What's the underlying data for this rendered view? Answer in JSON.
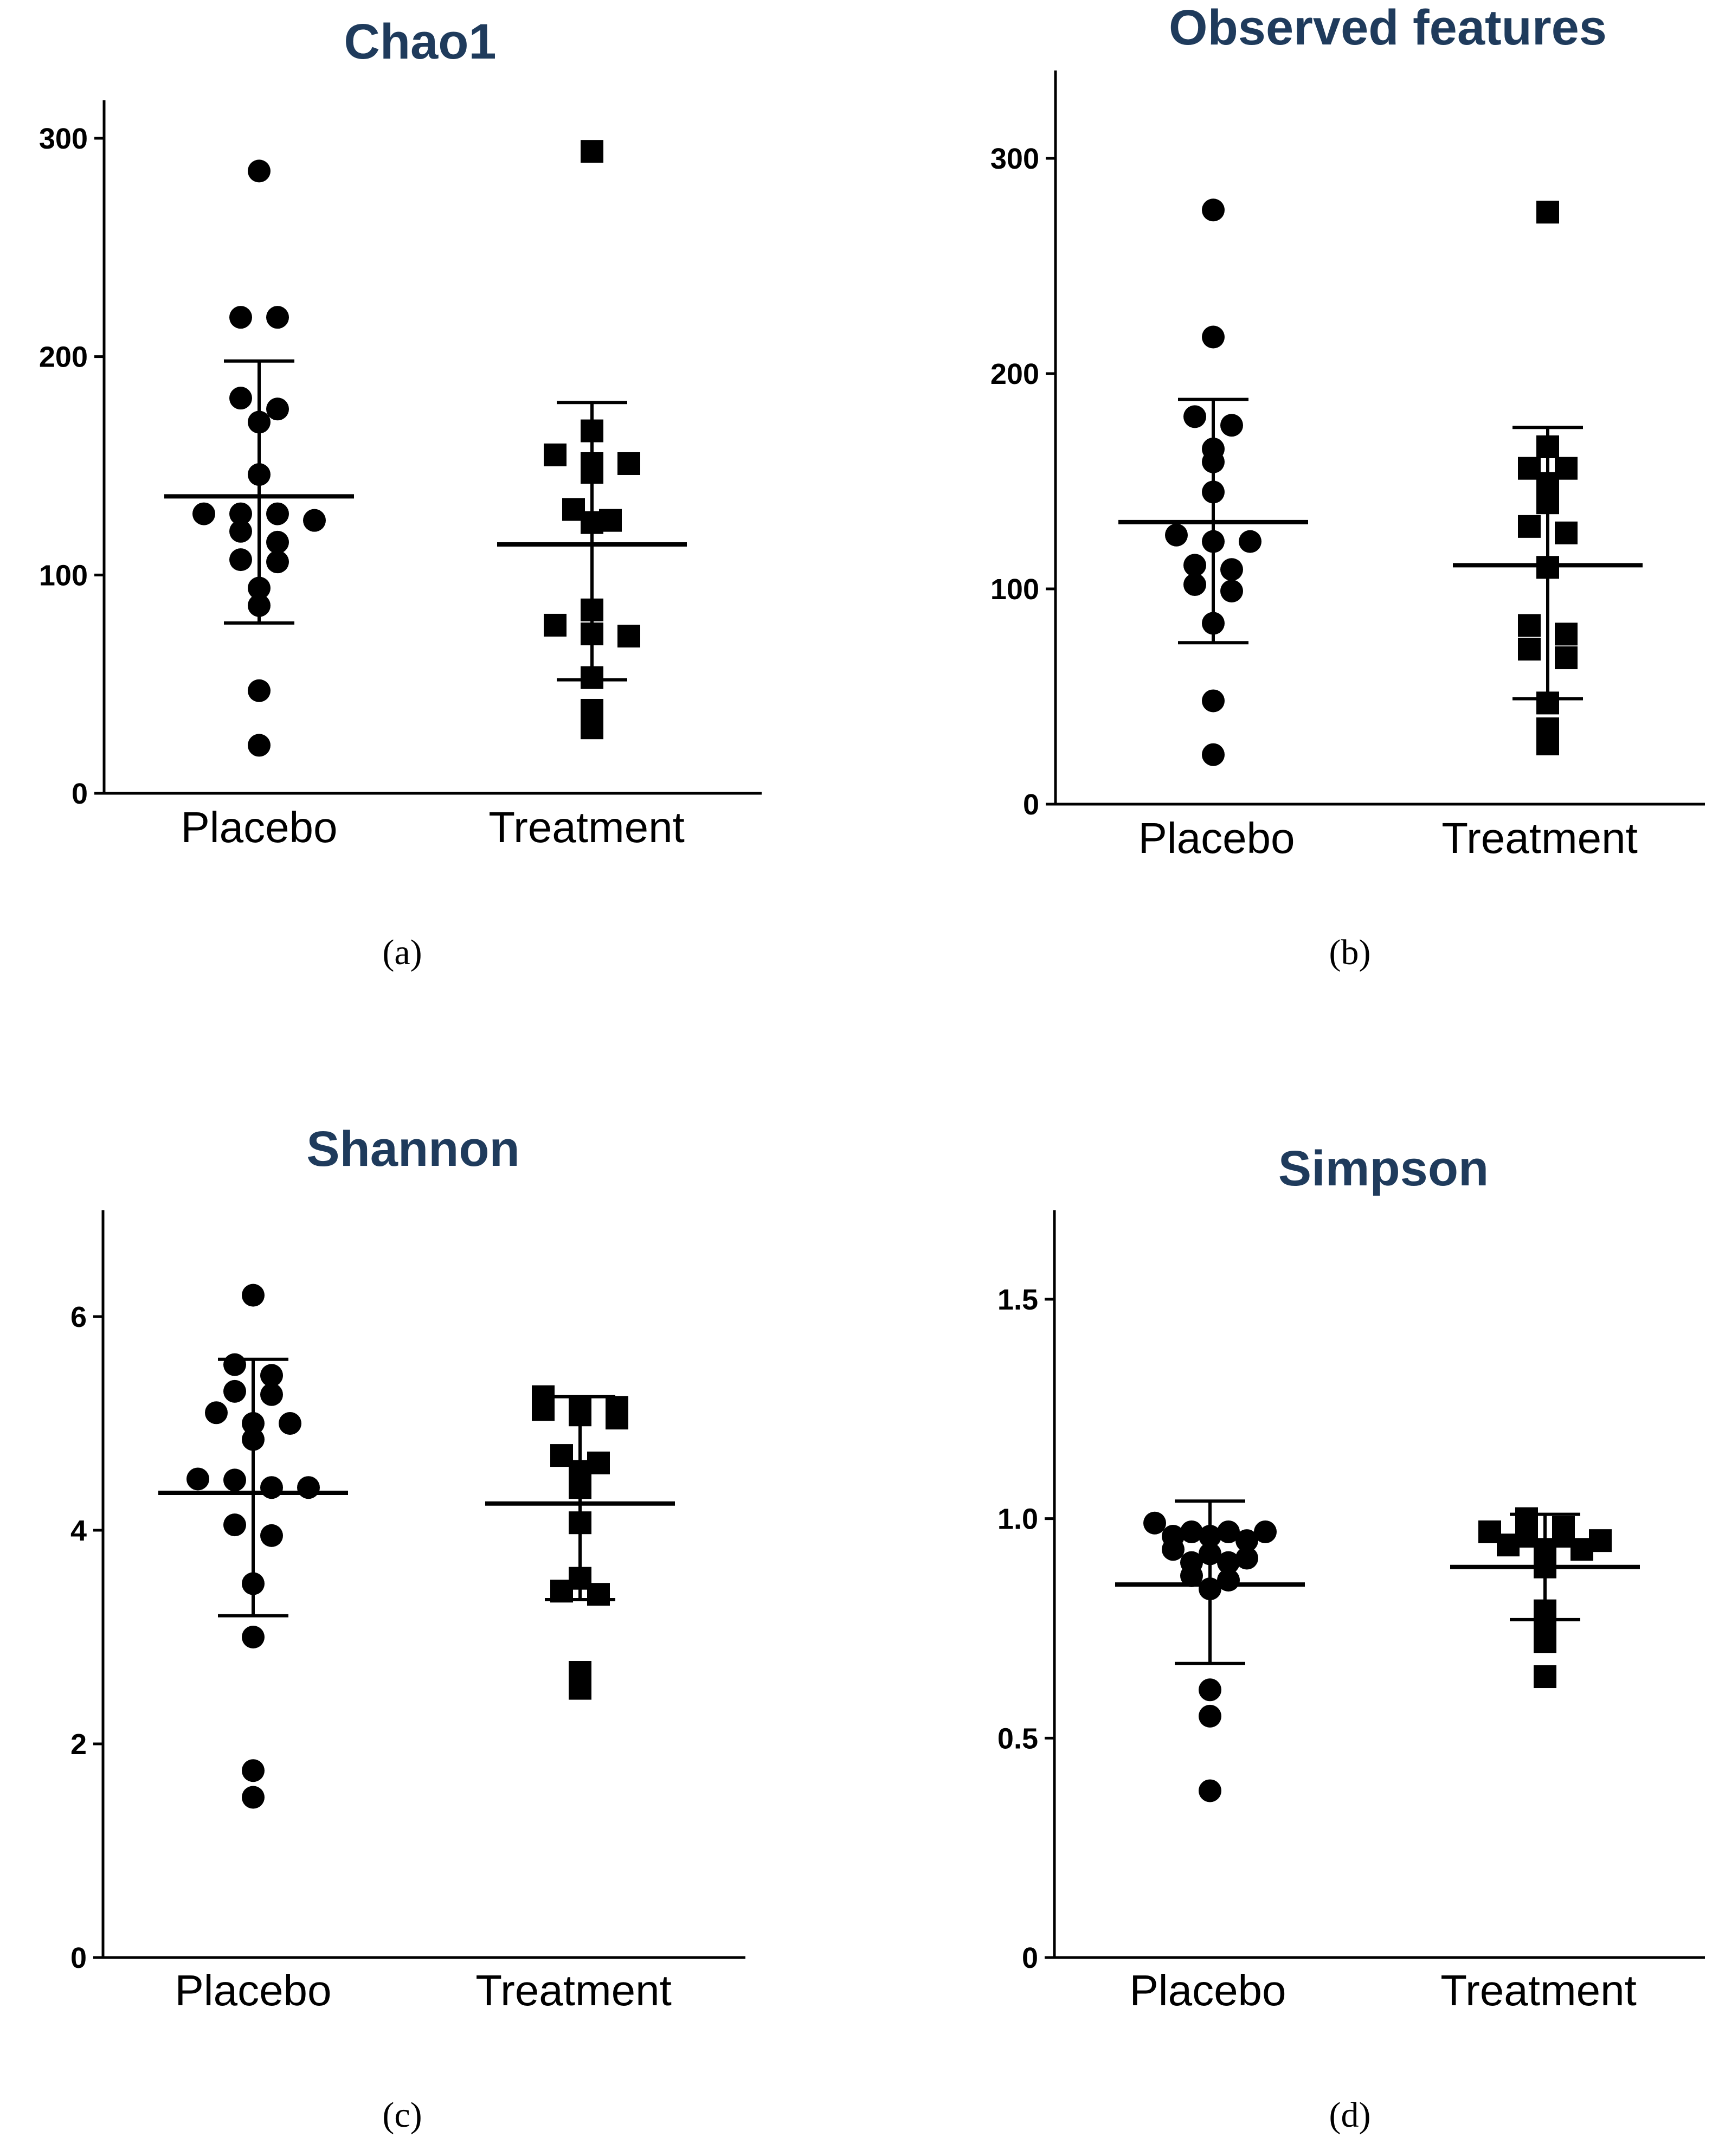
{
  "chart_data": [
    {
      "type": "scatter",
      "title": "Chao1",
      "panel_label": "(a)",
      "categories": [
        "Placebo",
        "Treatment"
      ],
      "ylim": [
        0,
        300
      ],
      "yticks": [
        0,
        100,
        200,
        300
      ],
      "grid": false,
      "series": [
        {
          "marker": "circle",
          "mean": 136,
          "error": [
            78,
            198
          ],
          "values": [
            285,
            218,
            218,
            181,
            176,
            170,
            146,
            128,
            128,
            128,
            125,
            120,
            115,
            107,
            106,
            94,
            86,
            47,
            22
          ]
        },
        {
          "marker": "square",
          "mean": 114,
          "error": [
            52,
            179
          ],
          "values": [
            294,
            166,
            155,
            151,
            151,
            147,
            130,
            125,
            124,
            84,
            77,
            73,
            72,
            53,
            38,
            30
          ]
        }
      ]
    },
    {
      "type": "scatter",
      "title": "Observed features",
      "panel_label": "(b)",
      "categories": [
        "Placebo",
        "Treatment"
      ],
      "ylim": [
        0,
        300
      ],
      "yticks": [
        0,
        100,
        200,
        300
      ],
      "grid": false,
      "series": [
        {
          "marker": "circle",
          "mean": 131,
          "error": [
            75,
            188
          ],
          "values": [
            276,
            217,
            180,
            176,
            165,
            159,
            145,
            125,
            122,
            122,
            111,
            109,
            102,
            99,
            84,
            48,
            23
          ]
        },
        {
          "marker": "square",
          "mean": 111,
          "error": [
            49,
            175
          ],
          "values": [
            275,
            166,
            156,
            156,
            149,
            140,
            129,
            126,
            110,
            83,
            79,
            72,
            68,
            47,
            35,
            28
          ]
        }
      ]
    },
    {
      "type": "scatter",
      "title": "Shannon",
      "panel_label": "(c)",
      "categories": [
        "Placebo",
        "Treatment"
      ],
      "ylim": [
        0,
        6
      ],
      "yticks": [
        0,
        2,
        4,
        6
      ],
      "grid": false,
      "series": [
        {
          "marker": "circle",
          "mean": 4.35,
          "error": [
            3.2,
            5.6
          ],
          "values": [
            6.2,
            5.55,
            5.45,
            5.3,
            5.27,
            5.1,
            5.0,
            5.0,
            4.85,
            4.48,
            4.47,
            4.4,
            4.4,
            4.05,
            3.95,
            3.5,
            3.0,
            1.75,
            1.5
          ]
        },
        {
          "marker": "square",
          "mean": 4.25,
          "error": [
            3.35,
            5.25
          ],
          "values": [
            5.25,
            5.15,
            5.15,
            5.13,
            5.08,
            5.05,
            4.7,
            4.63,
            4.55,
            4.4,
            4.07,
            3.55,
            3.43,
            3.4,
            2.67,
            2.52
          ]
        }
      ]
    },
    {
      "type": "scatter",
      "title": "Simpson",
      "panel_label": "(d)",
      "categories": [
        "Placebo",
        "Treatment"
      ],
      "ylim": [
        0,
        1.5
      ],
      "yticks": [
        0,
        0.5,
        1.0,
        1.5
      ],
      "ytick_labels": [
        "0",
        "0.5",
        "1.0",
        "1.5"
      ],
      "grid": false,
      "series": [
        {
          "marker": "circle",
          "mean": 0.85,
          "error": [
            0.67,
            1.04
          ],
          "values": [
            0.99,
            0.97,
            0.97,
            0.97,
            0.96,
            0.96,
            0.95,
            0.93,
            0.92,
            0.91,
            0.9,
            0.9,
            0.87,
            0.86,
            0.84,
            0.61,
            0.55,
            0.38
          ]
        },
        {
          "marker": "square",
          "mean": 0.89,
          "error": [
            0.77,
            1.01
          ],
          "values": [
            1.0,
            0.98,
            0.97,
            0.96,
            0.96,
            0.95,
            0.94,
            0.93,
            0.93,
            0.89,
            0.79,
            0.75,
            0.72,
            0.64
          ]
        }
      ]
    }
  ]
}
